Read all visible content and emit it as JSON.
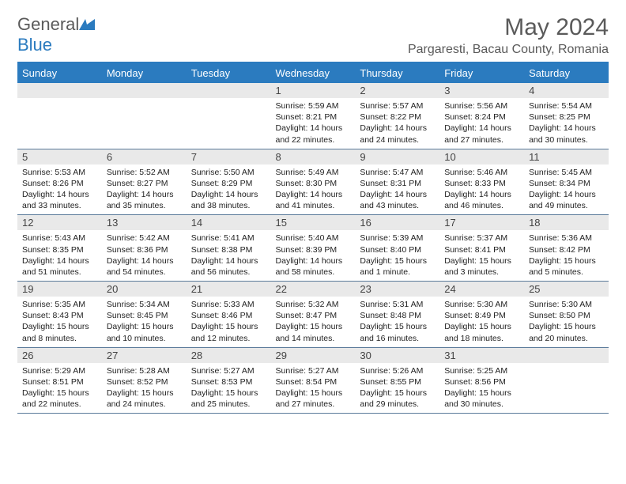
{
  "brand": {
    "name1": "General",
    "name2": "Blue"
  },
  "title": "May 2024",
  "location": "Pargaresti, Bacau County, Romania",
  "colors": {
    "accent": "#2b7bbf",
    "header_bg": "#2b7bbf",
    "daynum_bg": "#e9e9e9",
    "text": "#222222",
    "muted": "#5a5a5a"
  },
  "day_headers": [
    "Sunday",
    "Monday",
    "Tuesday",
    "Wednesday",
    "Thursday",
    "Friday",
    "Saturday"
  ],
  "weeks": [
    [
      null,
      null,
      null,
      {
        "n": "1",
        "sr": "5:59 AM",
        "ss": "8:21 PM",
        "dl": "14 hours and 22 minutes."
      },
      {
        "n": "2",
        "sr": "5:57 AM",
        "ss": "8:22 PM",
        "dl": "14 hours and 24 minutes."
      },
      {
        "n": "3",
        "sr": "5:56 AM",
        "ss": "8:24 PM",
        "dl": "14 hours and 27 minutes."
      },
      {
        "n": "4",
        "sr": "5:54 AM",
        "ss": "8:25 PM",
        "dl": "14 hours and 30 minutes."
      }
    ],
    [
      {
        "n": "5",
        "sr": "5:53 AM",
        "ss": "8:26 PM",
        "dl": "14 hours and 33 minutes."
      },
      {
        "n": "6",
        "sr": "5:52 AM",
        "ss": "8:27 PM",
        "dl": "14 hours and 35 minutes."
      },
      {
        "n": "7",
        "sr": "5:50 AM",
        "ss": "8:29 PM",
        "dl": "14 hours and 38 minutes."
      },
      {
        "n": "8",
        "sr": "5:49 AM",
        "ss": "8:30 PM",
        "dl": "14 hours and 41 minutes."
      },
      {
        "n": "9",
        "sr": "5:47 AM",
        "ss": "8:31 PM",
        "dl": "14 hours and 43 minutes."
      },
      {
        "n": "10",
        "sr": "5:46 AM",
        "ss": "8:33 PM",
        "dl": "14 hours and 46 minutes."
      },
      {
        "n": "11",
        "sr": "5:45 AM",
        "ss": "8:34 PM",
        "dl": "14 hours and 49 minutes."
      }
    ],
    [
      {
        "n": "12",
        "sr": "5:43 AM",
        "ss": "8:35 PM",
        "dl": "14 hours and 51 minutes."
      },
      {
        "n": "13",
        "sr": "5:42 AM",
        "ss": "8:36 PM",
        "dl": "14 hours and 54 minutes."
      },
      {
        "n": "14",
        "sr": "5:41 AM",
        "ss": "8:38 PM",
        "dl": "14 hours and 56 minutes."
      },
      {
        "n": "15",
        "sr": "5:40 AM",
        "ss": "8:39 PM",
        "dl": "14 hours and 58 minutes."
      },
      {
        "n": "16",
        "sr": "5:39 AM",
        "ss": "8:40 PM",
        "dl": "15 hours and 1 minute."
      },
      {
        "n": "17",
        "sr": "5:37 AM",
        "ss": "8:41 PM",
        "dl": "15 hours and 3 minutes."
      },
      {
        "n": "18",
        "sr": "5:36 AM",
        "ss": "8:42 PM",
        "dl": "15 hours and 5 minutes."
      }
    ],
    [
      {
        "n": "19",
        "sr": "5:35 AM",
        "ss": "8:43 PM",
        "dl": "15 hours and 8 minutes."
      },
      {
        "n": "20",
        "sr": "5:34 AM",
        "ss": "8:45 PM",
        "dl": "15 hours and 10 minutes."
      },
      {
        "n": "21",
        "sr": "5:33 AM",
        "ss": "8:46 PM",
        "dl": "15 hours and 12 minutes."
      },
      {
        "n": "22",
        "sr": "5:32 AM",
        "ss": "8:47 PM",
        "dl": "15 hours and 14 minutes."
      },
      {
        "n": "23",
        "sr": "5:31 AM",
        "ss": "8:48 PM",
        "dl": "15 hours and 16 minutes."
      },
      {
        "n": "24",
        "sr": "5:30 AM",
        "ss": "8:49 PM",
        "dl": "15 hours and 18 minutes."
      },
      {
        "n": "25",
        "sr": "5:30 AM",
        "ss": "8:50 PM",
        "dl": "15 hours and 20 minutes."
      }
    ],
    [
      {
        "n": "26",
        "sr": "5:29 AM",
        "ss": "8:51 PM",
        "dl": "15 hours and 22 minutes."
      },
      {
        "n": "27",
        "sr": "5:28 AM",
        "ss": "8:52 PM",
        "dl": "15 hours and 24 minutes."
      },
      {
        "n": "28",
        "sr": "5:27 AM",
        "ss": "8:53 PM",
        "dl": "15 hours and 25 minutes."
      },
      {
        "n": "29",
        "sr": "5:27 AM",
        "ss": "8:54 PM",
        "dl": "15 hours and 27 minutes."
      },
      {
        "n": "30",
        "sr": "5:26 AM",
        "ss": "8:55 PM",
        "dl": "15 hours and 29 minutes."
      },
      {
        "n": "31",
        "sr": "5:25 AM",
        "ss": "8:56 PM",
        "dl": "15 hours and 30 minutes."
      },
      null
    ]
  ],
  "labels": {
    "sunrise": "Sunrise:",
    "sunset": "Sunset:",
    "daylight": "Daylight:"
  }
}
